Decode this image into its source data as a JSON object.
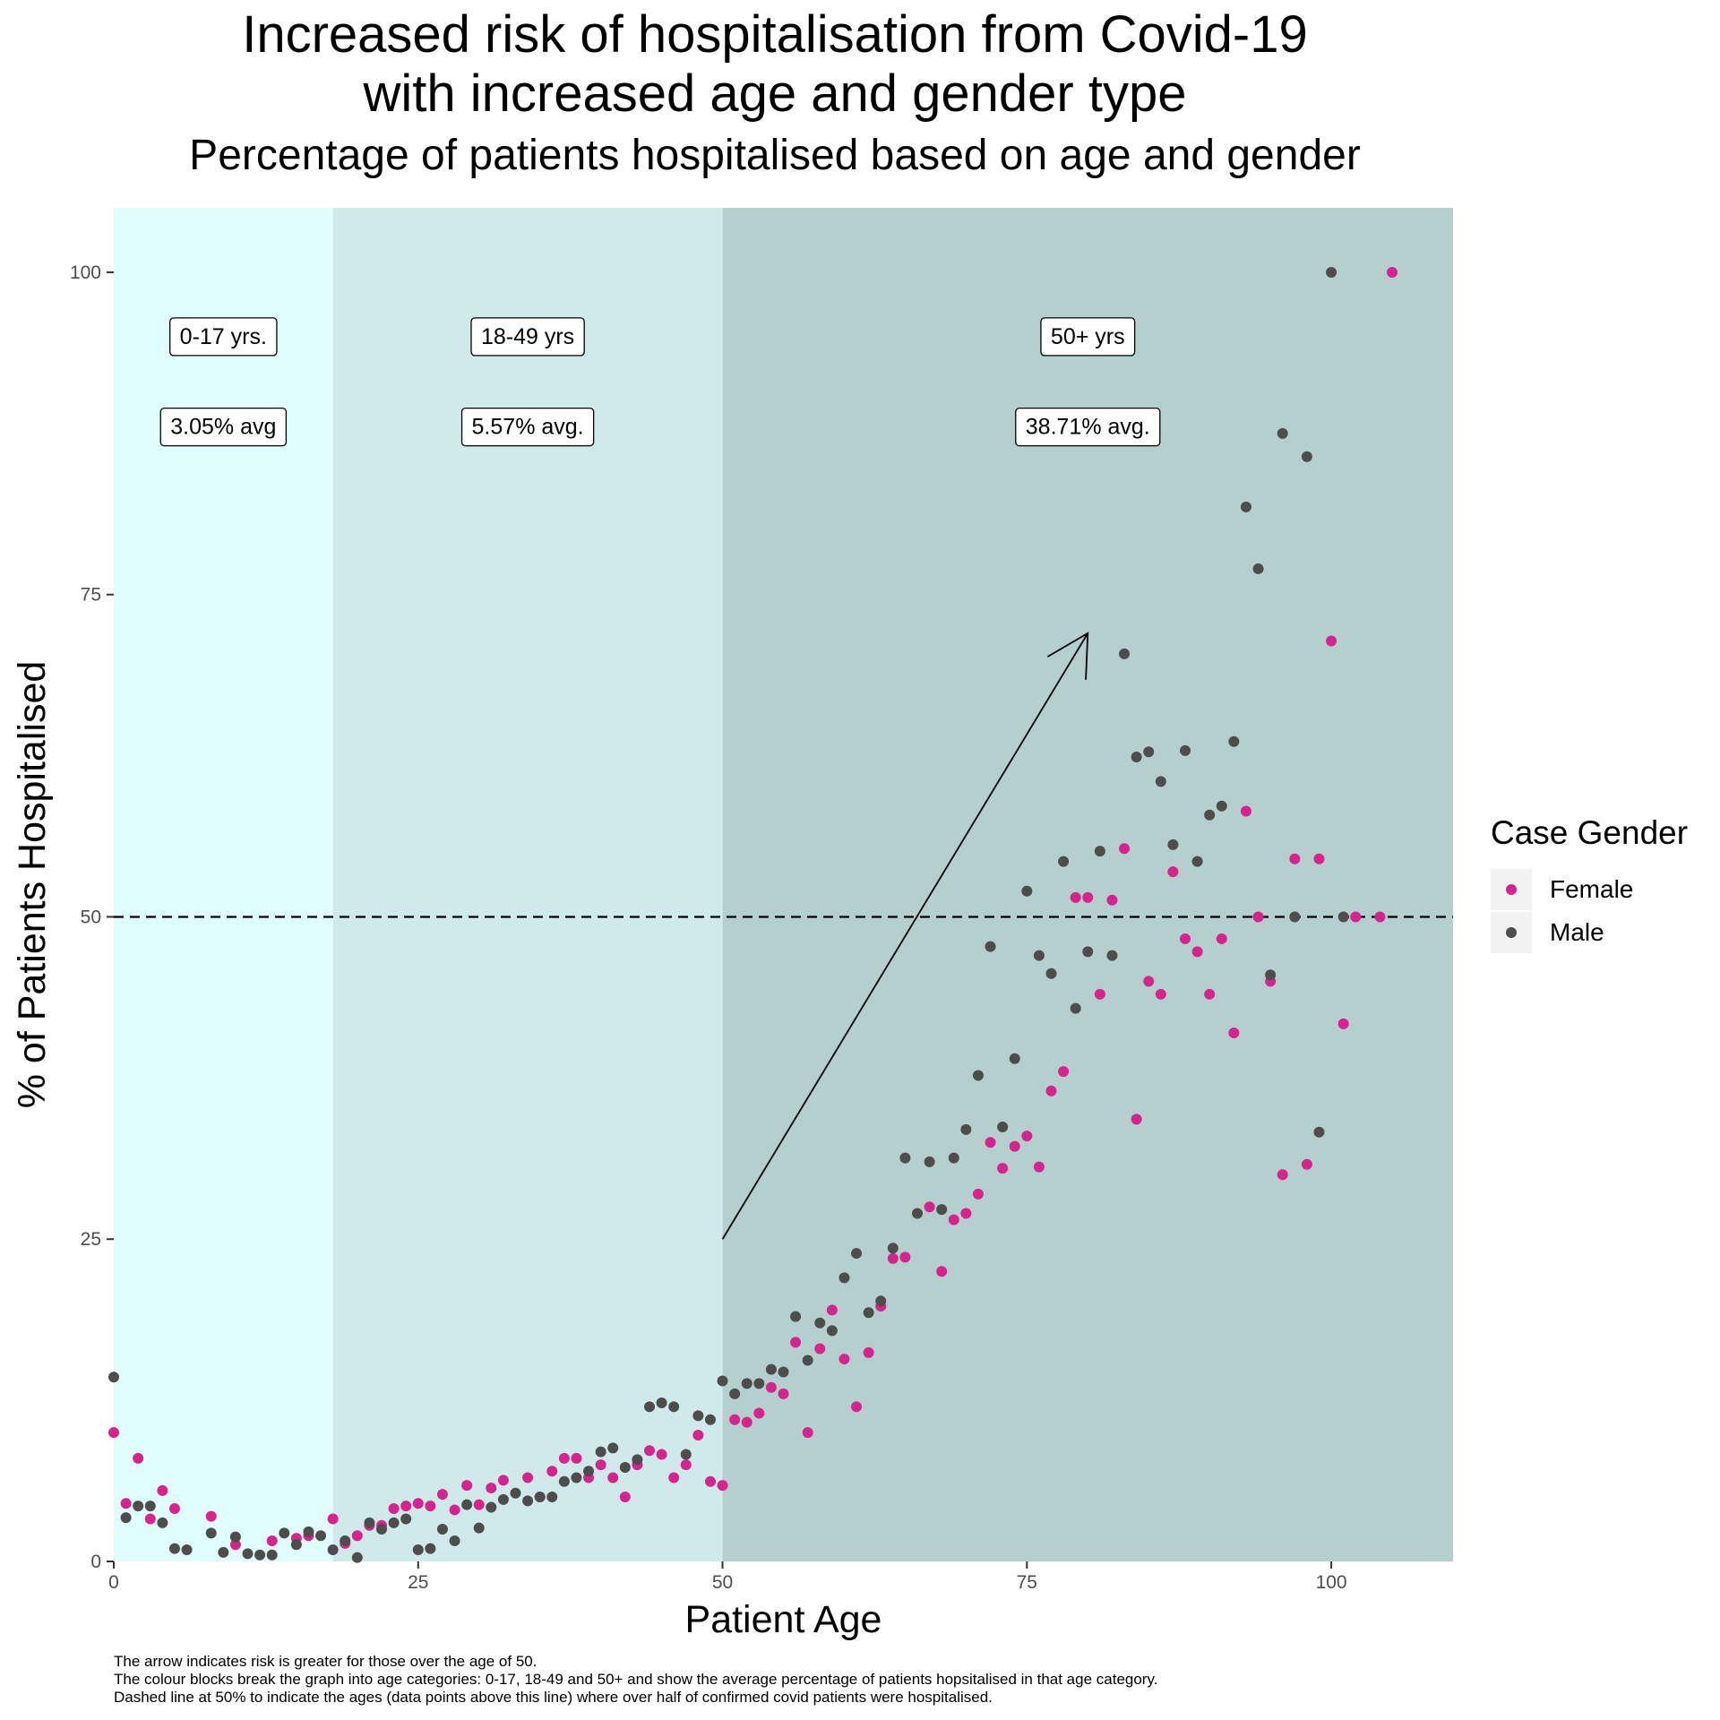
{
  "chart_data": {
    "type": "scatter",
    "title_lines": [
      "Increased risk of hospitalisation from Covid-19",
      "with increased age and gender type"
    ],
    "subtitle": "Percentage of patients hospitalised based on age and gender",
    "xlabel": "Patient Age",
    "ylabel": "% of Patients Hospitalised",
    "xlim": [
      0,
      110
    ],
    "ylim": [
      0,
      105
    ],
    "x_ticks": [
      0,
      25,
      50,
      75,
      100
    ],
    "y_ticks": [
      0,
      25,
      50,
      75,
      100
    ],
    "grid": false,
    "legend": {
      "title": "Case Gender",
      "position": "right"
    },
    "colors": {
      "Female": "#d6248f",
      "Male": "#4d4d4d"
    },
    "bands": [
      {
        "from": 0,
        "to": 18,
        "color": "#e0fefe",
        "label": "0-17 yrs.",
        "avg_label": "3.05% avg",
        "label_x": 9
      },
      {
        "from": 18,
        "to": 50,
        "color": "#d0e9ea",
        "label": "18-49 yrs",
        "avg_label": "5.57% avg.",
        "label_x": 34
      },
      {
        "from": 50,
        "to": 110,
        "color": "#b5cece",
        "label": "50+ yrs",
        "avg_label": "38.71% avg.",
        "label_x": 80
      }
    ],
    "label_y": 95,
    "avg_label_y": 88,
    "hline": 50,
    "arrow": {
      "x1": 50,
      "y1": 25,
      "x2": 80,
      "y2": 72
    },
    "series": [
      {
        "name": "Female",
        "points": [
          [
            0,
            10
          ],
          [
            1,
            4.5
          ],
          [
            2,
            8
          ],
          [
            3,
            3.3
          ],
          [
            4,
            5.5
          ],
          [
            5,
            4.1
          ],
          [
            8,
            3.5
          ],
          [
            10,
            1.3
          ],
          [
            13,
            1.6
          ],
          [
            15,
            1.8
          ],
          [
            16,
            2.0
          ],
          [
            18,
            3.3
          ],
          [
            19,
            1.4
          ],
          [
            20,
            2.0
          ],
          [
            21,
            2.8
          ],
          [
            22,
            2.8
          ],
          [
            23,
            4.1
          ],
          [
            24,
            4.3
          ],
          [
            25,
            4.5
          ],
          [
            26,
            4.3
          ],
          [
            27,
            5.2
          ],
          [
            28,
            4.0
          ],
          [
            29,
            5.9
          ],
          [
            30,
            4.4
          ],
          [
            31,
            5.7
          ],
          [
            32,
            6.3
          ],
          [
            34,
            6.5
          ],
          [
            35,
            5.0
          ],
          [
            36,
            7.0
          ],
          [
            37,
            8.0
          ],
          [
            38,
            8.0
          ],
          [
            39,
            6.5
          ],
          [
            40,
            7.5
          ],
          [
            41,
            6.5
          ],
          [
            42,
            5.0
          ],
          [
            43,
            7.5
          ],
          [
            44,
            8.6
          ],
          [
            45,
            8.3
          ],
          [
            46,
            6.5
          ],
          [
            47,
            7.5
          ],
          [
            48,
            9.8
          ],
          [
            49,
            6.2
          ],
          [
            50,
            5.9
          ],
          [
            51,
            11.0
          ],
          [
            52,
            10.8
          ],
          [
            53,
            11.5
          ],
          [
            54,
            13.5
          ],
          [
            55,
            13.0
          ],
          [
            56,
            17.0
          ],
          [
            57,
            10.0
          ],
          [
            58,
            16.5
          ],
          [
            59,
            19.5
          ],
          [
            60,
            15.7
          ],
          [
            61,
            12.0
          ],
          [
            62,
            16.2
          ],
          [
            63,
            19.8
          ],
          [
            64,
            23.5
          ],
          [
            65,
            23.6
          ],
          [
            67,
            27.5
          ],
          [
            68,
            22.5
          ],
          [
            69,
            26.5
          ],
          [
            70,
            27.0
          ],
          [
            71,
            28.5
          ],
          [
            72,
            32.5
          ],
          [
            73,
            30.5
          ],
          [
            74,
            32.2
          ],
          [
            75,
            33.0
          ],
          [
            76,
            30.6
          ],
          [
            77,
            36.5
          ],
          [
            78,
            38.0
          ],
          [
            79,
            51.5
          ],
          [
            80,
            51.5
          ],
          [
            81,
            44.0
          ],
          [
            82,
            51.3
          ],
          [
            83,
            55.3
          ],
          [
            84,
            34.3
          ],
          [
            85,
            45.0
          ],
          [
            86,
            44.0
          ],
          [
            87,
            53.5
          ],
          [
            88,
            48.3
          ],
          [
            89,
            47.3
          ],
          [
            90,
            44.0
          ],
          [
            91,
            48.3
          ],
          [
            92,
            41.0
          ],
          [
            93,
            58.2
          ],
          [
            94,
            50.0
          ],
          [
            95,
            45.0
          ],
          [
            96,
            30.0
          ],
          [
            97,
            54.5
          ],
          [
            98,
            30.8
          ],
          [
            99,
            54.5
          ],
          [
            100,
            71.4
          ],
          [
            101,
            41.7
          ],
          [
            102,
            50.0
          ],
          [
            104,
            50.0
          ],
          [
            105,
            100
          ]
        ]
      },
      {
        "name": "Male",
        "points": [
          [
            0,
            14.3
          ],
          [
            1,
            3.4
          ],
          [
            2,
            4.3
          ],
          [
            3,
            4.3
          ],
          [
            4,
            3.0
          ],
          [
            5,
            1.0
          ],
          [
            6,
            0.9
          ],
          [
            8,
            2.2
          ],
          [
            9,
            0.7
          ],
          [
            10,
            1.9
          ],
          [
            11,
            0.6
          ],
          [
            12,
            0.5
          ],
          [
            13,
            0.5
          ],
          [
            14,
            2.2
          ],
          [
            15,
            1.3
          ],
          [
            16,
            2.3
          ],
          [
            17,
            2.0
          ],
          [
            18,
            0.9
          ],
          [
            19,
            1.6
          ],
          [
            20,
            0.3
          ],
          [
            21,
            3.0
          ],
          [
            22,
            2.5
          ],
          [
            23,
            3.0
          ],
          [
            24,
            3.3
          ],
          [
            25,
            0.9
          ],
          [
            26,
            1.0
          ],
          [
            27,
            2.5
          ],
          [
            28,
            1.6
          ],
          [
            29,
            4.4
          ],
          [
            30,
            2.6
          ],
          [
            31,
            4.2
          ],
          [
            32,
            4.8
          ],
          [
            33,
            5.3
          ],
          [
            34,
            4.7
          ],
          [
            35,
            5.0
          ],
          [
            36,
            5.0
          ],
          [
            37,
            6.2
          ],
          [
            38,
            6.5
          ],
          [
            39,
            7.0
          ],
          [
            40,
            8.5
          ],
          [
            41,
            8.8
          ],
          [
            42,
            7.3
          ],
          [
            43,
            7.9
          ],
          [
            44,
            12.0
          ],
          [
            45,
            12.3
          ],
          [
            46,
            12.0
          ],
          [
            47,
            8.3
          ],
          [
            48,
            11.3
          ],
          [
            49,
            11.0
          ],
          [
            50,
            14.0
          ],
          [
            51,
            13.0
          ],
          [
            52,
            13.8
          ],
          [
            53,
            13.8
          ],
          [
            54,
            14.9
          ],
          [
            55,
            14.7
          ],
          [
            56,
            19.0
          ],
          [
            57,
            15.6
          ],
          [
            58,
            18.5
          ],
          [
            59,
            17.9
          ],
          [
            60,
            22.0
          ],
          [
            61,
            23.9
          ],
          [
            62,
            19.3
          ],
          [
            63,
            20.2
          ],
          [
            64,
            24.3
          ],
          [
            65,
            31.3
          ],
          [
            66,
            27.0
          ],
          [
            67,
            31.0
          ],
          [
            68,
            27.3
          ],
          [
            69,
            31.3
          ],
          [
            70,
            33.5
          ],
          [
            71,
            37.7
          ],
          [
            72,
            47.7
          ],
          [
            73,
            33.7
          ],
          [
            74,
            39.0
          ],
          [
            75,
            52.0
          ],
          [
            76,
            47.0
          ],
          [
            77,
            45.6
          ],
          [
            78,
            54.3
          ],
          [
            79,
            42.9
          ],
          [
            80,
            47.3
          ],
          [
            81,
            55.1
          ],
          [
            82,
            47.0
          ],
          [
            83,
            70.4
          ],
          [
            84,
            62.4
          ],
          [
            85,
            62.8
          ],
          [
            86,
            60.5
          ],
          [
            87,
            55.6
          ],
          [
            88,
            62.9
          ],
          [
            89,
            54.3
          ],
          [
            90,
            57.9
          ],
          [
            91,
            58.6
          ],
          [
            92,
            63.6
          ],
          [
            93,
            81.8
          ],
          [
            94,
            77.0
          ],
          [
            95,
            45.5
          ],
          [
            96,
            87.5
          ],
          [
            97,
            50.0
          ],
          [
            98,
            85.7
          ],
          [
            99,
            33.3
          ],
          [
            100,
            100
          ],
          [
            101,
            50.0
          ]
        ]
      }
    ]
  },
  "caption_lines": [
    "The arrow indicates risk is greater for those over the age of 50.",
    "The colour blocks break the graph into age categories: 0-17, 18-49 and 50+ and show the average percentage of patients hopsitalised in that age category.",
    "Dashed line at 50% to indicate the ages (data points above this line) where over half of confirmed covid patients were hospitalised."
  ]
}
